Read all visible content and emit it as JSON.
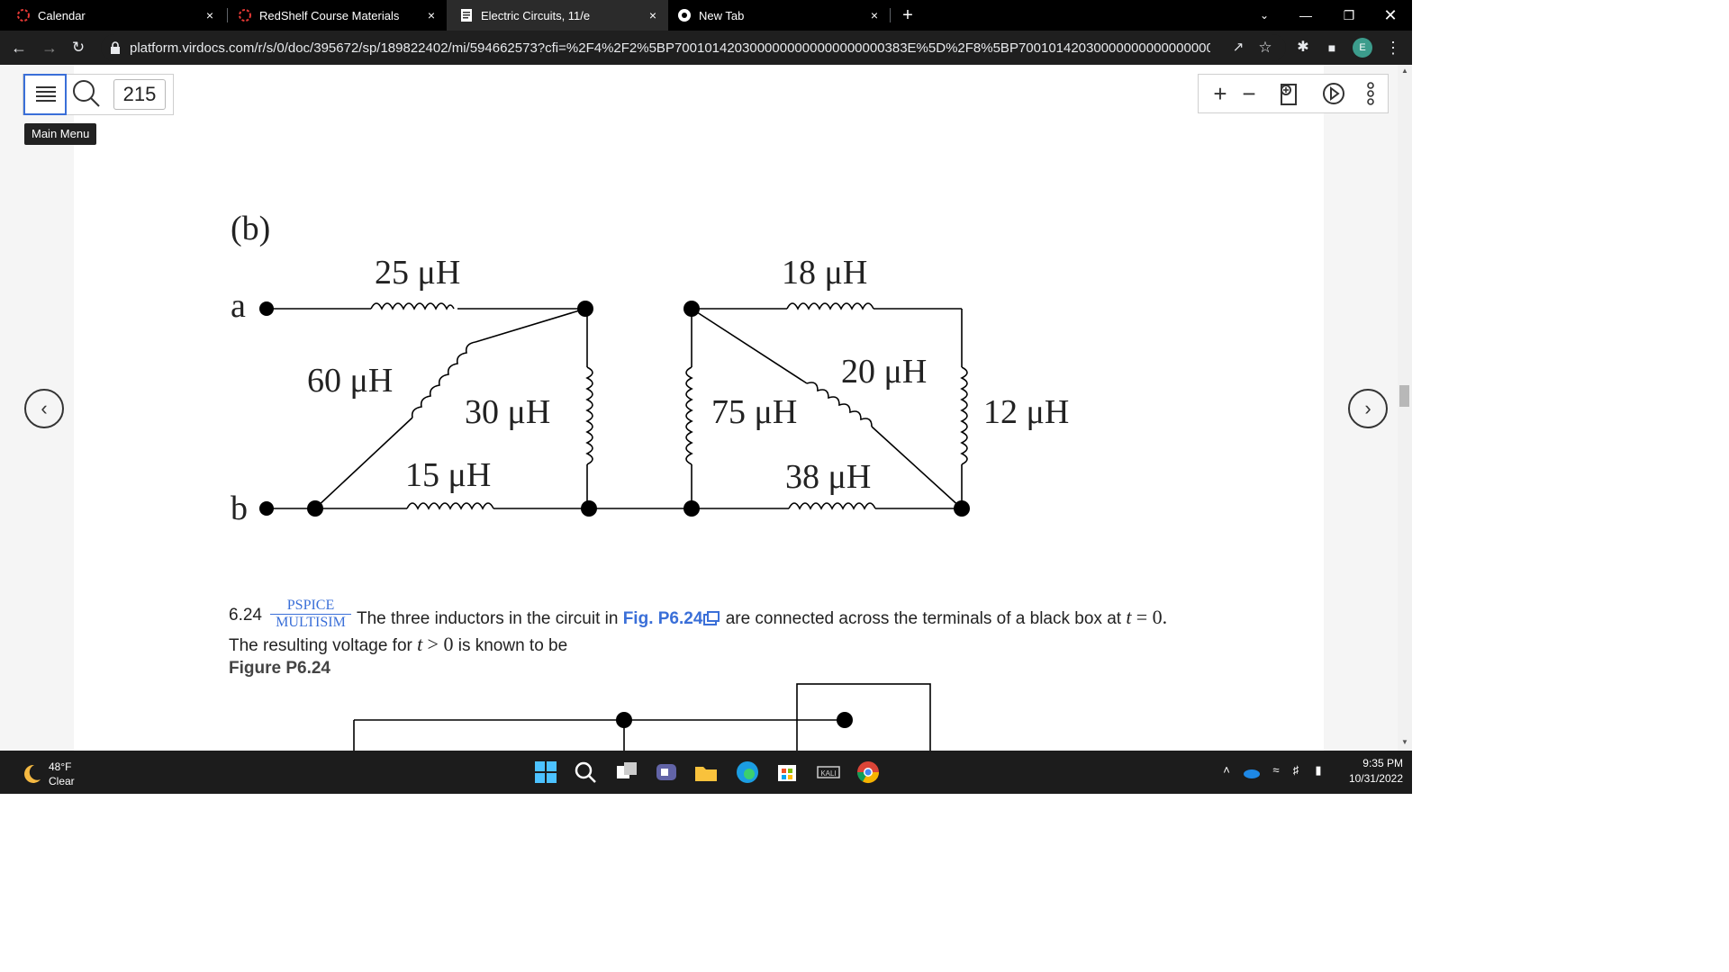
{
  "browser": {
    "tabs": [
      {
        "title": "Calendar",
        "icon": "redshelf-icon",
        "active": false
      },
      {
        "title": "RedShelf Course Materials",
        "icon": "redshelf-icon",
        "active": false
      },
      {
        "title": "Electric Circuits, 11/e",
        "icon": "book-icon",
        "active": true
      },
      {
        "title": "New Tab",
        "icon": "chrome-icon",
        "active": false
      }
    ],
    "close_glyph": "×",
    "new_tab_glyph": "+",
    "url": "platform.virdocs.com/r/s/0/doc/395672/sp/189822402/mi/594662573?cfi=%2F4%2F2%5BP7001014203000000000000000000383E%5D%2F8%5BP700101420300000000000000000396B%5D%...",
    "profile_initial": "E"
  },
  "reader": {
    "page_number": "215",
    "tooltip": "Main Menu",
    "zoom_in": "+",
    "zoom_out": "−",
    "prev_glyph": "‹",
    "next_glyph": "›"
  },
  "figure": {
    "label": "(b)",
    "terminal_a": "a",
    "terminal_b": "b",
    "inductors": {
      "l25": "25 μH",
      "l60": "60 μH",
      "l30": "30 μH",
      "l15": "15 μH",
      "l18": "18 μH",
      "l20": "20 μH",
      "l75": "75 μH",
      "l38": "38 μH",
      "l12": "12 μH"
    }
  },
  "problem": {
    "number": "6.24",
    "tag_top": "PSPICE",
    "tag_bottom": "MULTISIM",
    "text_a": "The three inductors in the circuit in",
    "fig_link": "Fig. P6.24",
    "text_b": "are connected across the terminals of a black box at",
    "var_t": "t",
    "eq_zero": "= 0.",
    "line2_a": "The resulting voltage for",
    "gt_zero": "> 0",
    "line2_b": "is known to be",
    "figure_label": "Figure P6.24"
  },
  "taskbar": {
    "temperature": "48°F",
    "condition": "Clear",
    "time": "9:35 PM",
    "date": "10/31/2022"
  }
}
